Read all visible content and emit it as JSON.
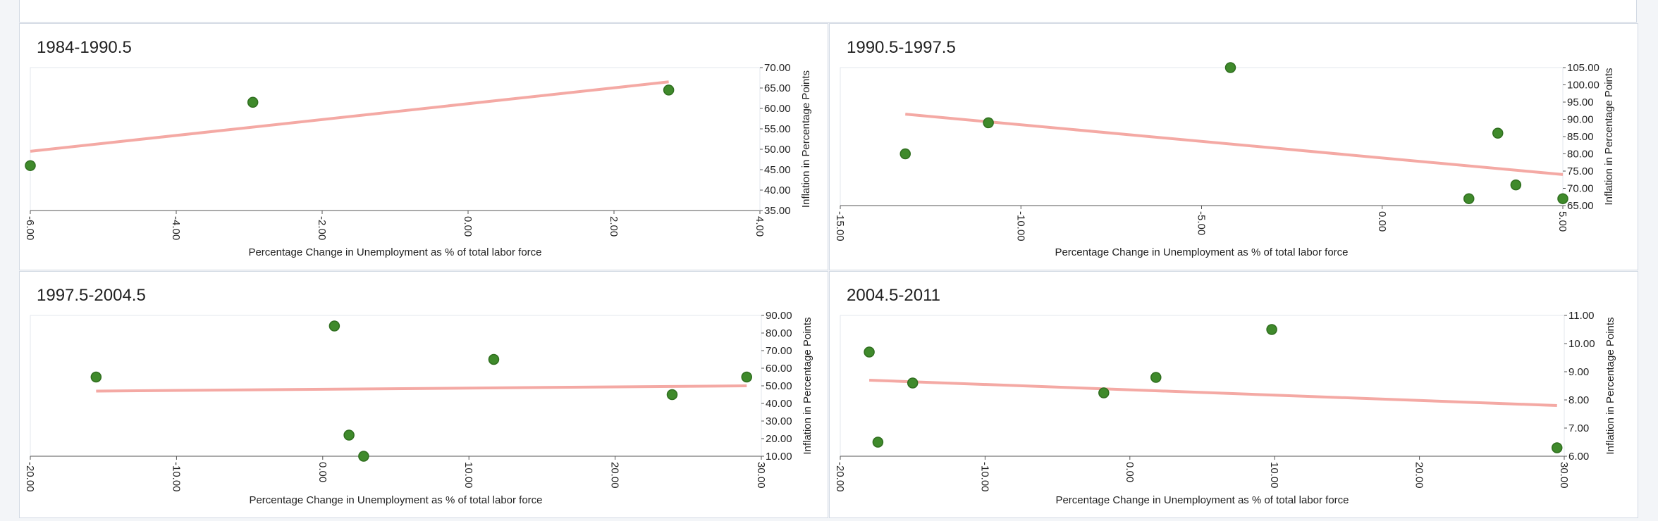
{
  "chart_data": [
    {
      "type": "scatter",
      "title": "1984-1990.5",
      "xlabel": "Percentage Change in Unemployment as % of total labor force",
      "ylabel": "Inflation in Percentage Points",
      "xlim": [
        -6,
        4
      ],
      "ylim": [
        35,
        70
      ],
      "xticks": [
        "-6.00",
        "-4.00",
        "-2.00",
        "0.00",
        "2.00",
        "4.00"
      ],
      "yticks": [
        "35.00",
        "40.00",
        "45.00",
        "50.00",
        "55.00",
        "60.00",
        "65.00",
        "70.00"
      ],
      "points": [
        {
          "x": -6.0,
          "y": 46.0
        },
        {
          "x": -2.95,
          "y": 61.5
        },
        {
          "x": 2.75,
          "y": 64.5
        }
      ],
      "trend_line": [
        {
          "x": -6.0,
          "y": 49.5
        },
        {
          "x": 2.75,
          "y": 66.5
        }
      ],
      "colors": {
        "point": "#3f8a2b",
        "trend": "#f4a9a4"
      }
    },
    {
      "type": "scatter",
      "title": "1990.5-1997.5",
      "xlabel": "Percentage Change in Unemployment as % of total labor force",
      "ylabel": "Inflation in Percentage Points",
      "xlim": [
        -15,
        5
      ],
      "ylim": [
        65,
        105
      ],
      "xticks": [
        "-15.00",
        "-10.00",
        "-5.00",
        "0.00",
        "5.00"
      ],
      "yticks": [
        "65.00",
        "70.00",
        "75.00",
        "80.00",
        "85.00",
        "90.00",
        "95.00",
        "100.00",
        "105.00"
      ],
      "points": [
        {
          "x": -13.2,
          "y": 80.0
        },
        {
          "x": -10.9,
          "y": 89.0
        },
        {
          "x": -4.2,
          "y": 105.0
        },
        {
          "x": 2.4,
          "y": 67.0
        },
        {
          "x": 3.2,
          "y": 86.0
        },
        {
          "x": 3.7,
          "y": 71.0
        },
        {
          "x": 5.0,
          "y": 67.0
        }
      ],
      "trend_line": [
        {
          "x": -13.2,
          "y": 91.5
        },
        {
          "x": 5.0,
          "y": 74.0
        }
      ],
      "colors": {
        "point": "#3f8a2b",
        "trend": "#f4a9a4"
      }
    },
    {
      "type": "scatter",
      "title": "1997.5-2004.5",
      "xlabel": "Percentage Change in Unemployment as % of total labor force",
      "ylabel": "Inflation in Percentage Points",
      "xlim": [
        -20,
        30
      ],
      "ylim": [
        10,
        90
      ],
      "xticks": [
        "-20.00",
        "-10.00",
        "0.00",
        "10.00",
        "20.00",
        "30.00"
      ],
      "yticks": [
        "10.00",
        "20.00",
        "30.00",
        "40.00",
        "50.00",
        "60.00",
        "70.00",
        "80.00",
        "90.00"
      ],
      "points": [
        {
          "x": -15.5,
          "y": 55.0
        },
        {
          "x": 0.8,
          "y": 84.0
        },
        {
          "x": 1.8,
          "y": 22.0
        },
        {
          "x": 2.8,
          "y": 10.0
        },
        {
          "x": 11.7,
          "y": 65.0
        },
        {
          "x": 23.9,
          "y": 45.0
        },
        {
          "x": 29.0,
          "y": 55.0
        }
      ],
      "trend_line": [
        {
          "x": -15.5,
          "y": 47.0
        },
        {
          "x": 29.0,
          "y": 50.0
        }
      ],
      "colors": {
        "point": "#3f8a2b",
        "trend": "#f4a9a4"
      }
    },
    {
      "type": "scatter",
      "title": "2004.5-2011",
      "xlabel": "Percentage Change in Unemployment as % of total labor force",
      "ylabel": "Inflation in Percentage Points",
      "xlim": [
        -20,
        30
      ],
      "ylim": [
        6,
        11
      ],
      "xticks": [
        "-20.00",
        "-10.00",
        "0.00",
        "10.00",
        "20.00",
        "30.00"
      ],
      "yticks": [
        "6.00",
        "7.00",
        "8.00",
        "9.00",
        "10.00",
        "11.00"
      ],
      "points": [
        {
          "x": -18.0,
          "y": 9.7
        },
        {
          "x": -17.4,
          "y": 6.5
        },
        {
          "x": -15.0,
          "y": 8.6
        },
        {
          "x": -1.8,
          "y": 8.25
        },
        {
          "x": 1.8,
          "y": 8.8
        },
        {
          "x": 9.8,
          "y": 10.5
        },
        {
          "x": 29.5,
          "y": 6.3
        }
      ],
      "trend_line": [
        {
          "x": -18.0,
          "y": 8.7
        },
        {
          "x": 29.5,
          "y": 7.8
        }
      ],
      "colors": {
        "point": "#3f8a2b",
        "trend": "#f4a9a4"
      }
    }
  ]
}
